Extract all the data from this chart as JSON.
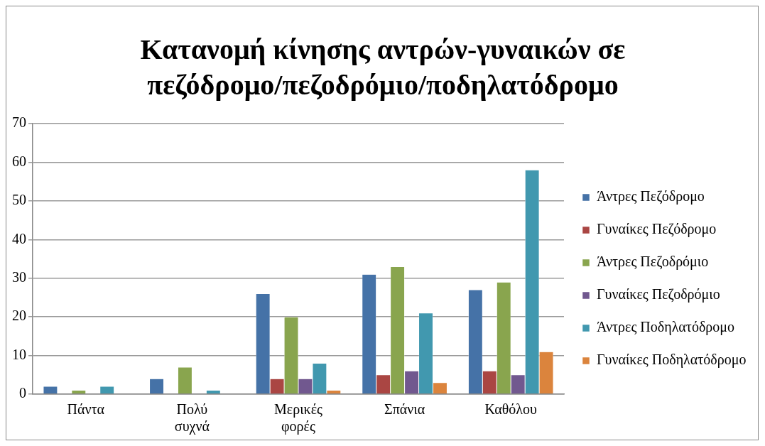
{
  "chart_data": {
    "type": "bar",
    "title": "Κατανομή κίνησης αντρών-γυναικών σε πεζόδρομο/πεζοδρόμιο/ποδηλατόδρομο",
    "categories": [
      "Πάντα",
      "Πολύ συχνά",
      "Μερικές φορές",
      "Σπάνια",
      "Καθόλου"
    ],
    "series": [
      {
        "name": "Άντρες Πεζόδρομο",
        "color": "#4572a7",
        "values": [
          2,
          4,
          26,
          31,
          27
        ]
      },
      {
        "name": "Γυναίκες Πεζόδρομο",
        "color": "#aa4643",
        "values": [
          0,
          0,
          4,
          5,
          6
        ]
      },
      {
        "name": "Άντρες Πεζοδρόμιο",
        "color": "#89a54e",
        "values": [
          1,
          7,
          20,
          33,
          29
        ]
      },
      {
        "name": "Γυναίκες Πεζοδρόμιο",
        "color": "#71588f",
        "values": [
          0,
          0,
          4,
          6,
          5
        ]
      },
      {
        "name": "Άντρες Ποδηλατόδρομο",
        "color": "#4198af",
        "values": [
          2,
          1,
          8,
          21,
          58
        ]
      },
      {
        "name": "Γυναίκες Ποδηλατόδρομο",
        "color": "#db843d",
        "values": [
          0,
          0,
          1,
          3,
          11
        ]
      }
    ],
    "ylim": [
      0,
      70
    ],
    "yticks": [
      0,
      10,
      20,
      30,
      40,
      50,
      60,
      70
    ],
    "grid": "y",
    "legend": "right"
  }
}
